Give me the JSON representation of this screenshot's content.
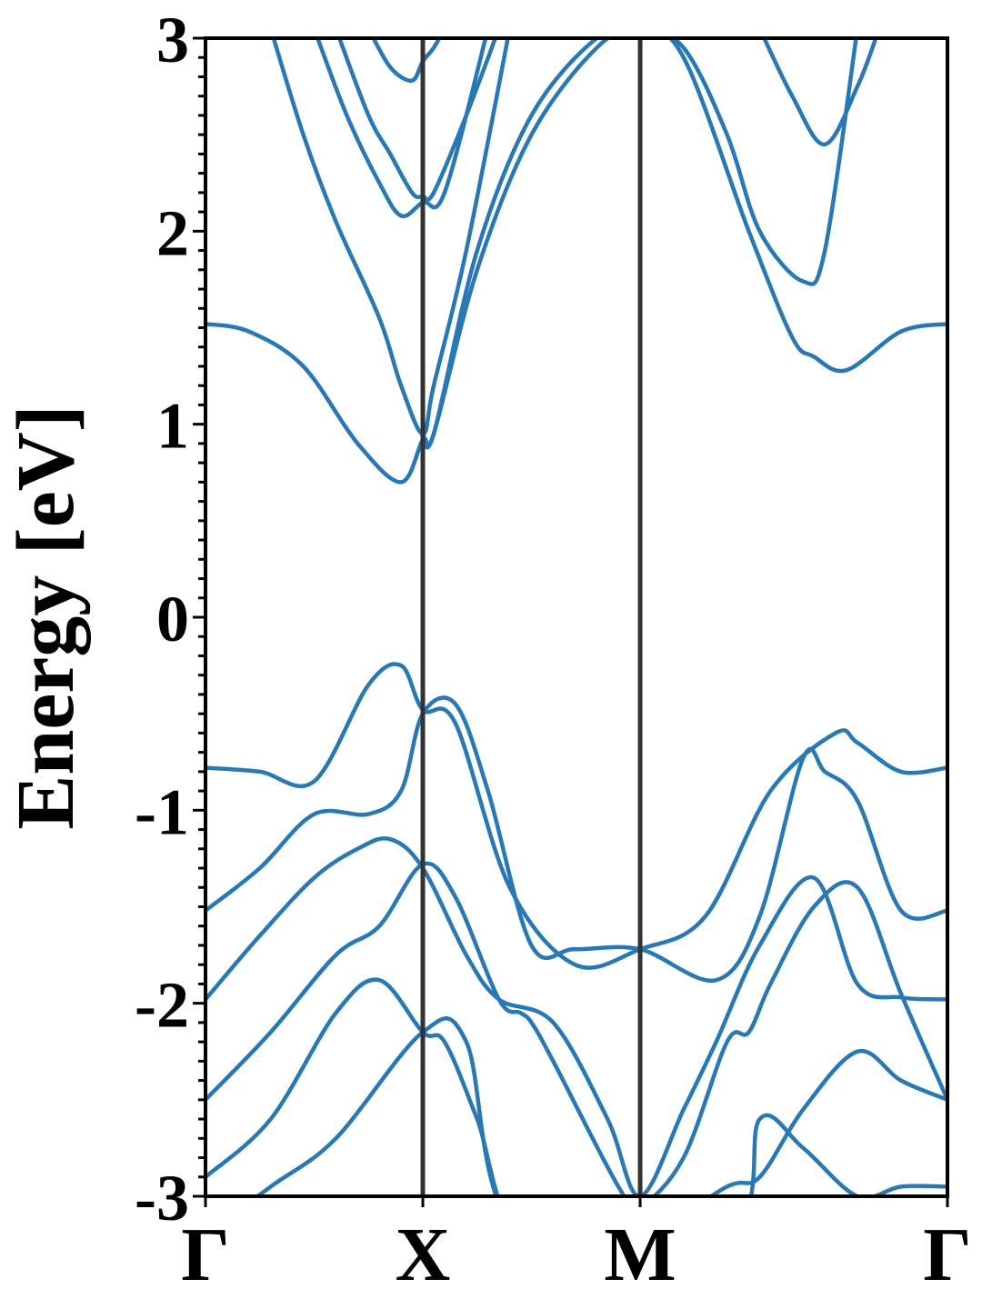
{
  "chart_data": {
    "type": "line",
    "ylabel": "Energy [eV]",
    "xlabel": "",
    "ylim": [
      -3,
      3
    ],
    "yticks": [
      "-3",
      "-2",
      "-1",
      "0",
      "1",
      "2",
      "3"
    ],
    "y_minor_step": 0.1,
    "kpath": [
      "Γ",
      "X",
      "M",
      "Γ"
    ],
    "kpath_positions": [
      0,
      1,
      2,
      3.414
    ],
    "grid": false,
    "band_color": "#2878b5",
    "kline_color": "#333333",
    "series": [
      {
        "x": [
          0,
          0.25,
          0.5,
          0.75,
          0.9,
          1.0,
          1.15,
          1.4,
          1.7,
          2.0,
          2.3,
          2.6,
          2.9,
          3.0,
          3.2,
          3.414
        ],
        "y": [
          -0.78,
          -0.8,
          -0.85,
          -0.35,
          -0.25,
          -0.48,
          -0.55,
          -1.4,
          -1.8,
          -1.72,
          -1.55,
          -0.9,
          -0.6,
          -0.65,
          -0.8,
          -0.78
        ]
      },
      {
        "x": [
          0,
          0.25,
          0.5,
          0.75,
          0.9,
          1.0,
          1.15,
          1.3,
          1.5,
          1.7,
          2.0,
          2.35,
          2.55,
          2.75,
          2.85,
          3.0,
          3.2,
          3.414
        ],
        "y": [
          -1.52,
          -1.3,
          -1.02,
          -1.02,
          -0.9,
          -0.5,
          -0.45,
          -0.9,
          -1.7,
          -1.72,
          -1.72,
          -1.88,
          -1.55,
          -0.73,
          -0.8,
          -0.95,
          -1.52,
          -1.52
        ]
      },
      {
        "x": [
          0,
          0.25,
          0.5,
          0.7,
          0.85,
          1.0,
          1.2,
          1.35,
          1.6,
          1.85,
          2.0,
          2.2,
          2.35,
          2.55,
          2.8,
          3.0,
          3.2,
          3.414
        ],
        "y": [
          -1.98,
          -1.65,
          -1.35,
          -1.2,
          -1.15,
          -1.3,
          -1.75,
          -1.98,
          -2.1,
          -2.6,
          -3.0,
          -2.55,
          -2.2,
          -1.7,
          -1.35,
          -1.9,
          -1.97,
          -1.98
        ]
      },
      {
        "x": [
          0,
          0.3,
          0.6,
          0.8,
          1.0,
          1.15,
          1.35,
          1.45,
          1.5,
          1.6,
          1.9,
          2.0,
          2.2,
          2.4,
          2.5,
          2.6,
          2.8,
          3.0,
          3.2,
          3.414
        ],
        "y": [
          -2.5,
          -2.15,
          -1.75,
          -1.6,
          -1.28,
          -1.45,
          -1.98,
          -2.05,
          -2.1,
          -2.3,
          -2.95,
          -3.05,
          -2.8,
          -2.2,
          -2.15,
          -1.9,
          -1.5,
          -1.4,
          -1.95,
          -2.5
        ]
      },
      {
        "x": [
          0,
          0.3,
          0.6,
          0.8,
          1.0,
          1.1,
          1.25,
          1.45,
          2.0,
          2.4,
          2.55,
          2.75,
          3.0,
          3.2,
          3.414
        ],
        "y": [
          -2.9,
          -2.6,
          -2.05,
          -1.88,
          -2.15,
          -2.2,
          -2.6,
          -3.2,
          -3.2,
          -2.95,
          -2.9,
          -2.55,
          -2.25,
          -2.4,
          -2.5
        ]
      },
      {
        "x": [
          0,
          0.3,
          0.6,
          1.0,
          1.2,
          1.45,
          2.4,
          2.55,
          2.75,
          3.0,
          3.2,
          3.414
        ],
        "y": [
          -3.2,
          -2.95,
          -2.7,
          -2.15,
          -2.2,
          -3.2,
          -3.2,
          -2.6,
          -2.75,
          -3.0,
          -2.95,
          -2.95
        ]
      },
      {
        "x": [
          0,
          0.2,
          0.45,
          0.7,
          0.9,
          1.0,
          1.05,
          1.25,
          1.5,
          1.8,
          2.0,
          2.2,
          2.5,
          2.7,
          2.8,
          2.95,
          3.2,
          3.414
        ],
        "y": [
          1.52,
          1.48,
          1.3,
          0.9,
          0.7,
          0.92,
          0.95,
          1.8,
          2.5,
          2.95,
          3.05,
          2.9,
          2.0,
          1.45,
          1.35,
          1.28,
          1.48,
          1.52
        ]
      },
      {
        "x": [
          1.0,
          1.05,
          1.25,
          1.5,
          1.8,
          2.0,
          2.2,
          2.4,
          2.55,
          2.75,
          2.85,
          3.0
        ],
        "y": [
          0.95,
          0.95,
          1.9,
          2.6,
          3.0,
          3.05,
          2.95,
          2.5,
          2.0,
          1.74,
          1.9,
          3.05
        ]
      },
      {
        "x": [
          0.3,
          0.45,
          0.6,
          0.8,
          0.9,
          1.0,
          1.05,
          1.2,
          1.4
        ],
        "y": [
          3.05,
          2.5,
          2.05,
          1.55,
          1.2,
          0.95,
          1.2,
          1.9,
          3.05
        ]
      },
      {
        "x": [
          0.5,
          0.65,
          0.8,
          0.9,
          1.0,
          1.1,
          1.3
        ],
        "y": [
          3.05,
          2.6,
          2.25,
          2.08,
          2.15,
          2.2,
          3.05
        ]
      },
      {
        "x": [
          0.6,
          0.75,
          0.85,
          0.95,
          1.0,
          1.05,
          1.2,
          1.35
        ],
        "y": [
          3.05,
          2.6,
          2.4,
          2.2,
          2.18,
          2.2,
          2.6,
          3.05
        ]
      },
      {
        "x": [
          0.75,
          0.85,
          0.95,
          1.0,
          1.05,
          1.1
        ],
        "y": [
          3.05,
          2.85,
          2.78,
          2.88,
          2.95,
          3.05
        ]
      },
      {
        "x": [
          2.55,
          2.7,
          2.85,
          3.0,
          3.1
        ],
        "y": [
          3.05,
          2.7,
          2.45,
          2.75,
          3.05
        ]
      }
    ]
  }
}
